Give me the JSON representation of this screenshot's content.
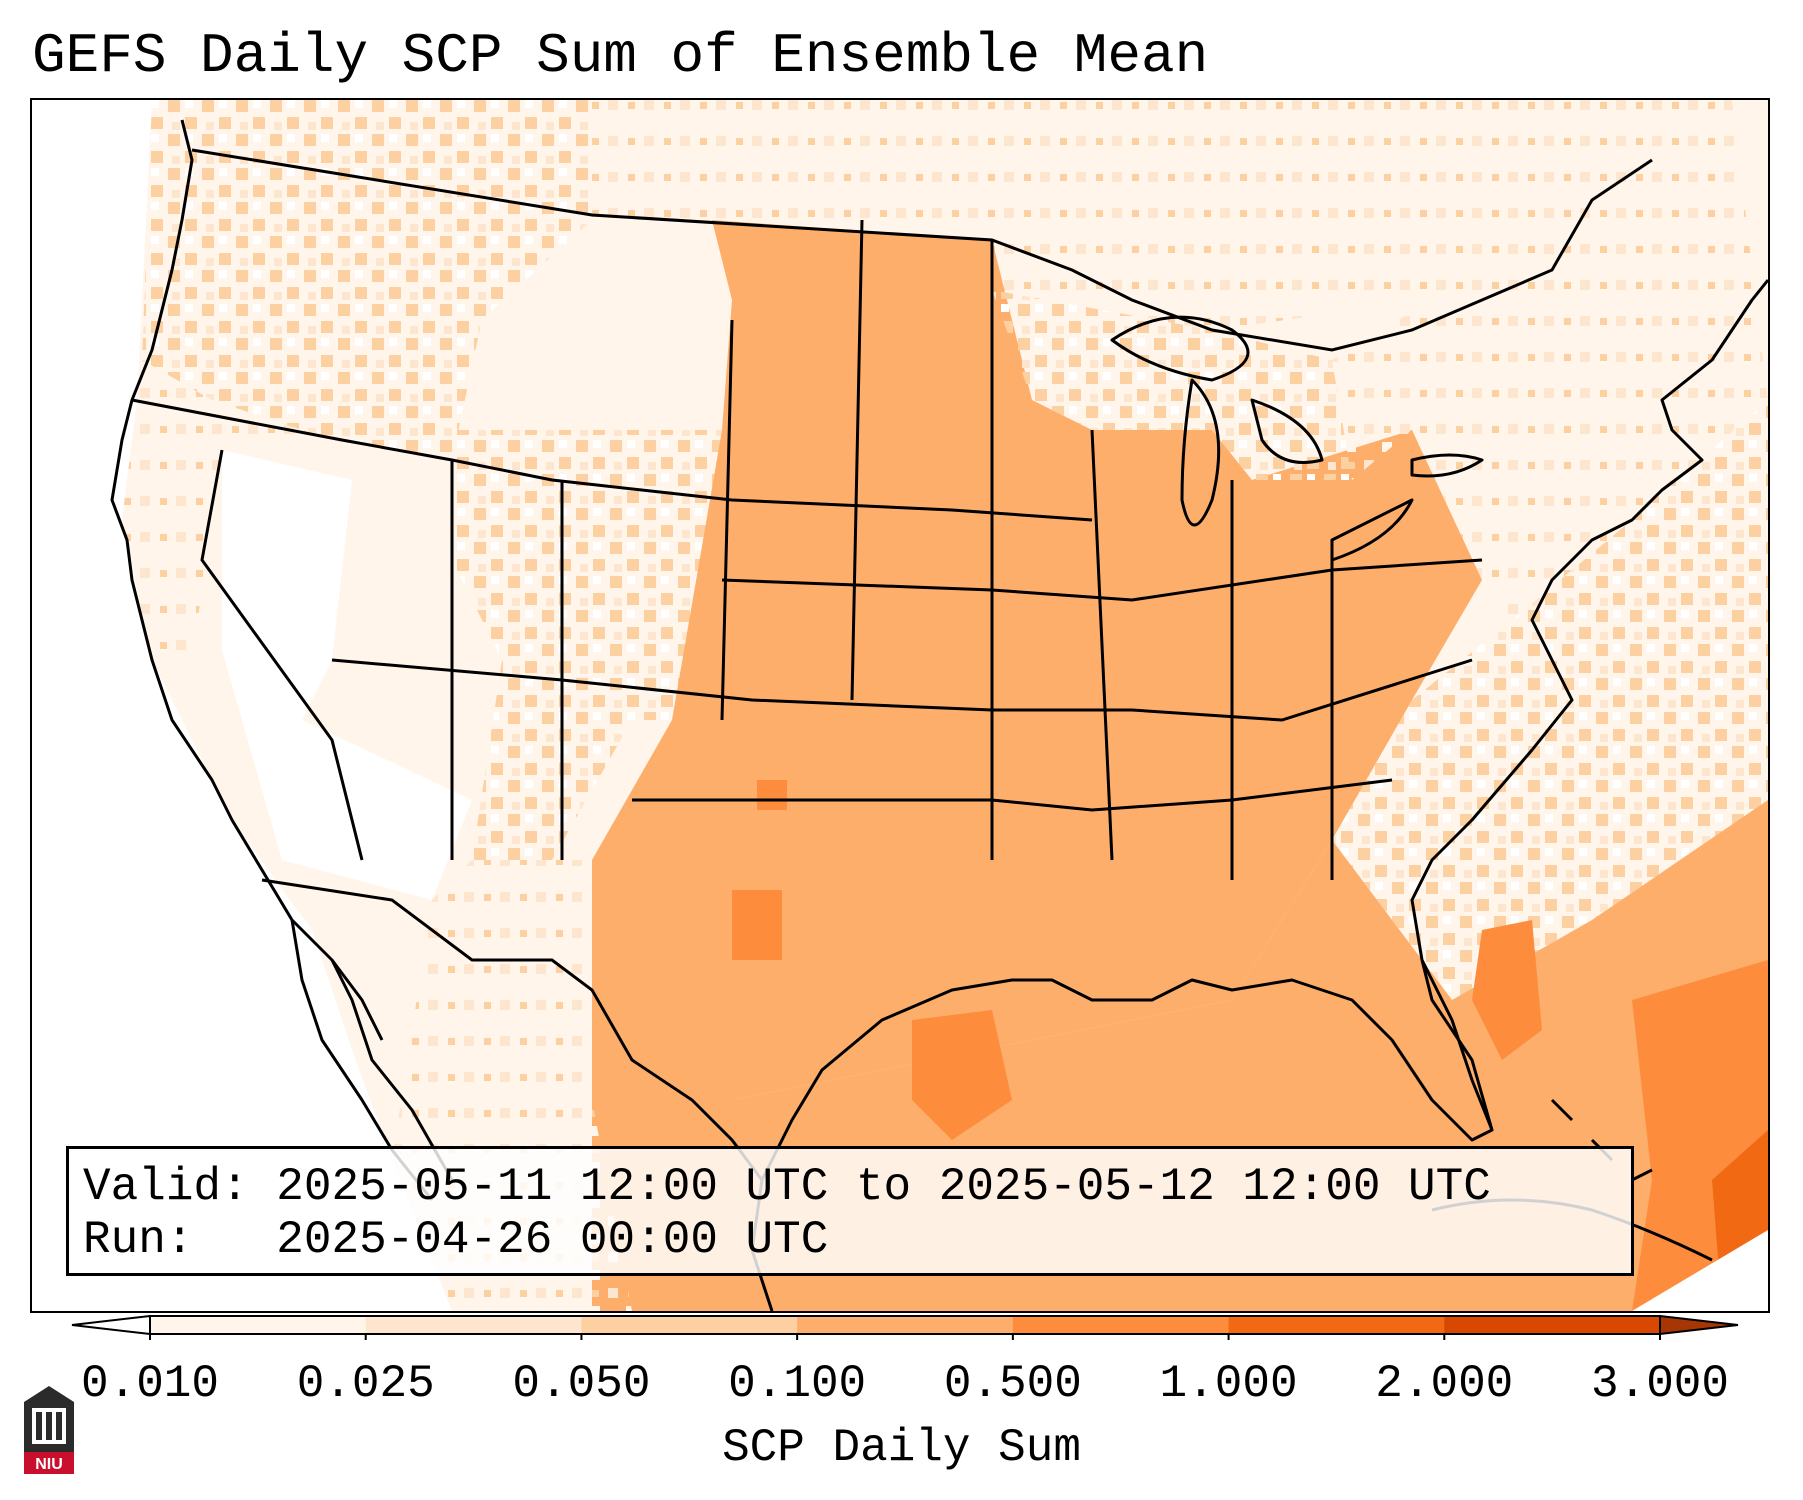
{
  "title": "GEFS Daily SCP Sum of Ensemble Mean",
  "info": {
    "valid_label": "Valid:",
    "valid_value": "2025-05-11 12:00 UTC to 2025-05-12 12:00 UTC",
    "run_label": "Run:",
    "run_value": "2025-04-26 00:00 UTC"
  },
  "colorbar": {
    "title": "SCP Daily Sum",
    "tick_labels": [
      "0.010",
      "0.025",
      "0.050",
      "0.100",
      "0.500",
      "1.000",
      "2.000",
      "3.000"
    ],
    "colors": [
      "#fff5eb",
      "#fee6ce",
      "#fdd0a2",
      "#fdae6b",
      "#fd8d3c",
      "#f16913",
      "#d94801",
      "#a63603"
    ],
    "extend": "both"
  },
  "map": {
    "region": "contiguous United States",
    "field_colors": {
      "none": "#ffffff",
      "very_low": "#fff5eb",
      "low": "#fee6ce",
      "moderate": "#fdd0a2",
      "elevated": "#fdae6b",
      "high": "#fd8d3c"
    }
  },
  "logo": {
    "text": "NIU",
    "icon": "niu-building-icon",
    "color": "#c8102e"
  }
}
